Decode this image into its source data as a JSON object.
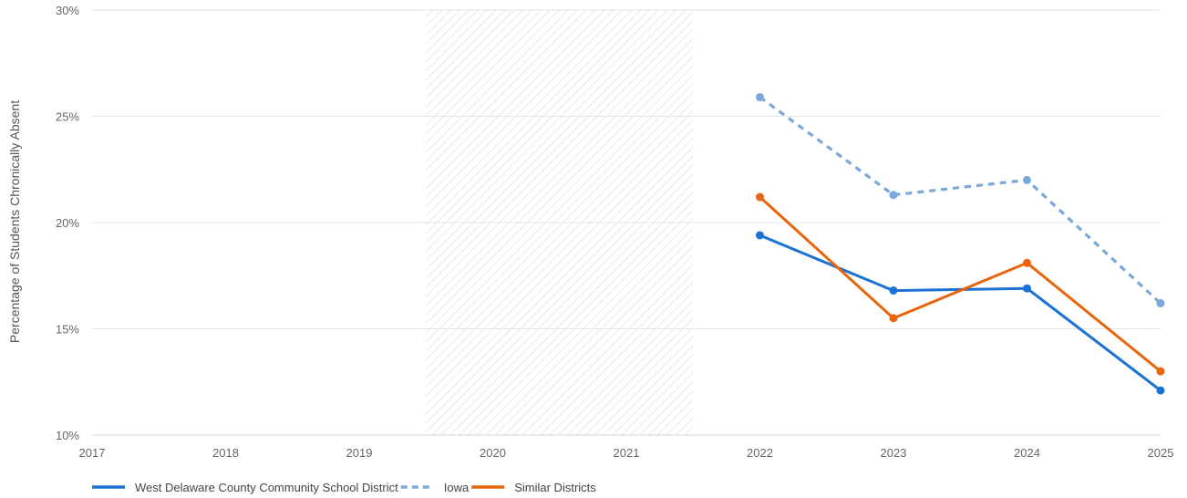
{
  "chart_data": {
    "type": "line",
    "title": "",
    "xlabel": "",
    "ylabel": "Percentage of Students Chronically Absent",
    "x": [
      2017,
      2018,
      2019,
      2020,
      2021,
      2022,
      2023,
      2024,
      2025
    ],
    "x_tick_labels": [
      "2017",
      "2018",
      "2019",
      "2020",
      "2021",
      "2022",
      "2023",
      "2024",
      "2025"
    ],
    "ylim": [
      10,
      30
    ],
    "y_ticks": [
      10,
      15,
      20,
      25,
      30
    ],
    "y_tick_labels": [
      "10%",
      "15%",
      "20%",
      "25%",
      "30%"
    ],
    "grid": true,
    "legend_position": "bottom-left",
    "shaded_region": {
      "x_start": 2019.5,
      "x_end": 2021.5,
      "pattern": "diagonal-hatch"
    },
    "series": [
      {
        "name": "West Delaware County Community School District",
        "color": "#1a73d4",
        "dash": "solid",
        "points": [
          [
            2022,
            19.4
          ],
          [
            2023,
            16.8
          ],
          [
            2024,
            16.9
          ],
          [
            2025,
            12.1
          ]
        ]
      },
      {
        "name": "Iowa",
        "color": "#7aa9d9",
        "dash": "dashed",
        "points": [
          [
            2022,
            25.9
          ],
          [
            2023,
            21.3
          ],
          [
            2024,
            22.0
          ],
          [
            2025,
            16.2
          ]
        ]
      },
      {
        "name": "Similar Districts",
        "color": "#e8650c",
        "dash": "solid",
        "points": [
          [
            2022,
            21.2
          ],
          [
            2023,
            15.5
          ],
          [
            2024,
            18.1
          ],
          [
            2025,
            13.0
          ]
        ]
      }
    ]
  }
}
